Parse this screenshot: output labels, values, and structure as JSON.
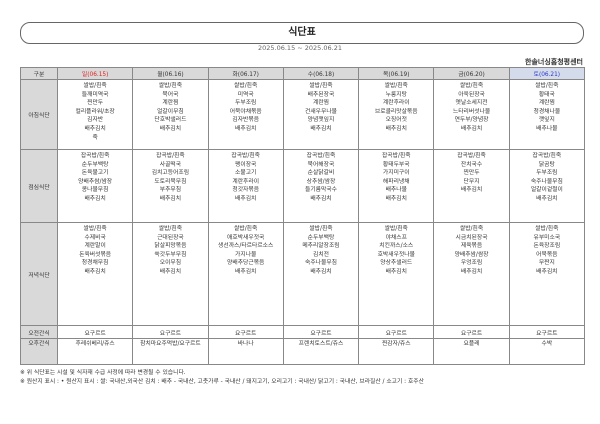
{
  "title": "식단표",
  "period": "2025.06.15 ~ 2025.06.21",
  "organization": "한솔너싱홈청평센터",
  "colors": {
    "sunday": "#e02020",
    "saturday": "#2a35c9",
    "header_bg": "#d9d9d9"
  },
  "table": {
    "corner": "구분",
    "days": [
      "일(06.15)",
      "월(06.16)",
      "화(06.17)",
      "수(06.18)",
      "목(06.19)",
      "금(06.20)",
      "토(06.21)"
    ],
    "rows": [
      {
        "label": "아침식단",
        "cells": [
          [
            "쌀밥/흰죽",
            "들깨미역국",
            "찐만두",
            "컬리플라워/초장",
            "김자반",
            "배추김치",
            "죽"
          ],
          [
            "쌀밥/흰죽",
            "북어국",
            "계란찜",
            "얼갈이무침",
            "단호박샐러드",
            "배추김치"
          ],
          [
            "쌀밥/흰죽",
            "미역국",
            "두부조림",
            "어묵야채볶음",
            "김자반볶음",
            "배추김치"
          ],
          [
            "쌀밥/흰죽",
            "배추된장국",
            "계란찜",
            "건새우무나물",
            "양념깻잎지",
            "배추김치"
          ],
          [
            "쌀밥/흰죽",
            "누룽지탕",
            "계란후라이",
            "브로콜리맛살볶음",
            "오징어젓",
            "배추김치"
          ],
          [
            "쌀밥/흰죽",
            "아욱된장국",
            "옛날소세지전",
            "느타리버섯나물",
            "연두부/양념장",
            "배추김치"
          ],
          [
            "쌀밥/흰죽",
            "황태국",
            "계란찜",
            "청경채나물",
            "깻잎지",
            "배추나물"
          ]
        ]
      },
      {
        "label": "점심식단",
        "cells": [
          [
            "잡곡밥/흰죽",
            "순두부백탕",
            "돈육불고기",
            "양배추쌈/쌈장",
            "콩나물무침",
            "배추김치"
          ],
          [
            "잡곡밥/흰죽",
            "사골떡국",
            "김치고등어조림",
            "도토리묵무침",
            "부추무침",
            "배추김치"
          ],
          [
            "잡곡밥/흰죽",
            "팽이장국",
            "소불고기",
            "계란후라이",
            "청갓자볶음",
            "배추김치"
          ],
          [
            "잡곡밥/흰죽",
            "북어해장국",
            "순살닭갈비",
            "상추쌈/쌈장",
            "들기름막국수",
            "배추김치"
          ],
          [
            "잡곡밥/흰죽",
            "황태두부국",
            "가지미구이",
            "해파리냉채",
            "배추나물",
            "배추김치"
          ],
          [
            "잡곡밥/흰죽",
            "잔치국수",
            "찐만두",
            "단무지",
            "배추김치"
          ],
          [
            "잡곡밥/흰죽",
            "닭곰탕",
            "두부조림",
            "숙주나물무침",
            "얼갈이겉절이",
            "배추김치"
          ]
        ]
      },
      {
        "label": "저녁식단",
        "cells": [
          [
            "쌀밥/흰죽",
            "수제비국",
            "계란말이",
            "돈육버섯볶음",
            "청경채무침",
            "배추김치"
          ],
          [
            "쌀밥/흰죽",
            "근대된장국",
            "닭살피망볶음",
            "쑥갓두부무침",
            "오이무침",
            "배추김치"
          ],
          [
            "쌀밥/흰죽",
            "애호박새우젓국",
            "생선까스/타르타르소스",
            "가지나물",
            "양배추당근볶음",
            "배추김치"
          ],
          [
            "쌀밥/흰죽",
            "순두부백탕",
            "메추리알장조림",
            "김치전",
            "숙주나물무침",
            "배추김치"
          ],
          [
            "쌀밥/흰죽",
            "야채스프",
            "치킨까스/소스",
            "호박새우젓나물",
            "양상추샐러드",
            "배추김치"
          ],
          [
            "쌀밥/흰죽",
            "시금치된장국",
            "제육볶음",
            "양배추쌈/쌈장",
            "우엉조림",
            "배추김치"
          ],
          [
            "쌀밥/흰죽",
            "유부미소국",
            "돈육장조림",
            "어묵볶음",
            "무짠지",
            "배추김치"
          ]
        ]
      },
      {
        "label": "오전간식",
        "cells": [
          [
            "요구르트"
          ],
          [
            "요구르트"
          ],
          [
            "요구르트"
          ],
          [
            "요구르트"
          ],
          [
            "요구르트"
          ],
          [
            "요구르트"
          ],
          [
            "요구르트"
          ]
        ]
      },
      {
        "label": "오후간식",
        "cells": [
          [
            "후레쉬베리/쥬스"
          ],
          [
            "참치마요주먹밥/요구르트"
          ],
          [
            "바나나"
          ],
          [
            "프렌치토스트/쥬스"
          ],
          [
            "찐감자/쥬스"
          ],
          [
            "요플레"
          ],
          [
            "수박"
          ]
        ]
      }
    ]
  },
  "notes": [
    "※ 위 식단표는 시설 및 식자재 수급 사정에 따라 변경될 수 있습니다.",
    "※ 원산지 표시 : • 원산지 표시 : 쌀: 국내산,외국산 김치 : 배추 - 국내산, 고춧가루 - 국내산 / 돼지고기, 오리고기 : 국내산/ 닭고기 : 국내산, 브라질산 / 소고기 : 호주산"
  ]
}
